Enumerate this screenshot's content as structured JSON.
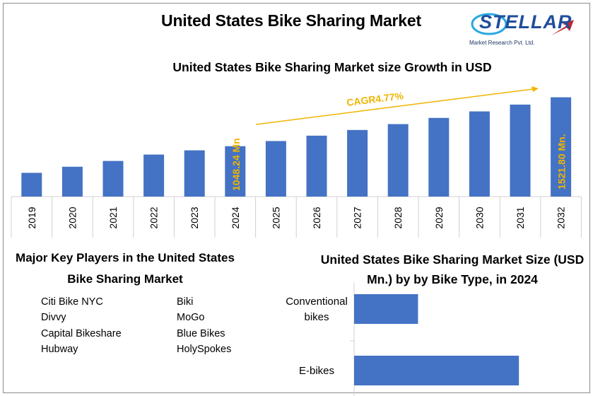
{
  "header": {
    "title": "United States Bike Sharing Market"
  },
  "logo": {
    "name": "STELLAR",
    "tagline": "Market Research Pvt. Ltd."
  },
  "colors": {
    "bar": "#4472c4",
    "label": "#f0b400",
    "axis": "#d0d0d0"
  },
  "chart_data": [
    {
      "type": "bar",
      "title": "United States Bike Sharing Market size Growth in USD",
      "categories": [
        "2019",
        "2020",
        "2021",
        "2022",
        "2023",
        "2024",
        "2025",
        "2026",
        "2027",
        "2028",
        "2029",
        "2030",
        "2031",
        "2032"
      ],
      "values": [
        790,
        849,
        905,
        967,
        1008,
        1048.24,
        1098,
        1150,
        1205,
        1262,
        1322,
        1385,
        1451,
        1521.8
      ],
      "ylim": [
        560,
        1560
      ],
      "xlabel": "",
      "ylabel": "",
      "annotations": {
        "label_2024": "1048.24 Mn",
        "label_2032": "1521.80 Mn.",
        "cagr": "CAGR4.77%"
      }
    },
    {
      "type": "bar",
      "orientation": "horizontal",
      "title": "United States Bike Sharing Market Size (USD Mn.) by by Bike Type, in 2024",
      "title_lines": [
        "United States Bike Sharing Market Size (USD",
        "Mn.) by by Bike Type, in 2024"
      ],
      "categories": [
        "Conventional bikes",
        "E-bikes"
      ],
      "category_lines": [
        [
          "Conventional",
          "bikes"
        ],
        [
          "E-bikes"
        ]
      ],
      "values": [
        280,
        722
      ],
      "xlim": [
        0,
        1000
      ]
    }
  ],
  "players": {
    "title_lines": [
      "Major Key Players in the United States",
      "Bike Sharing Market"
    ],
    "left": [
      "Citi Bike NYC",
      "Divvy",
      "Capital Bikeshare",
      "Hubway"
    ],
    "right": [
      "Biki",
      "MoGo",
      "Blue Bikes",
      "HolySpokes"
    ]
  }
}
